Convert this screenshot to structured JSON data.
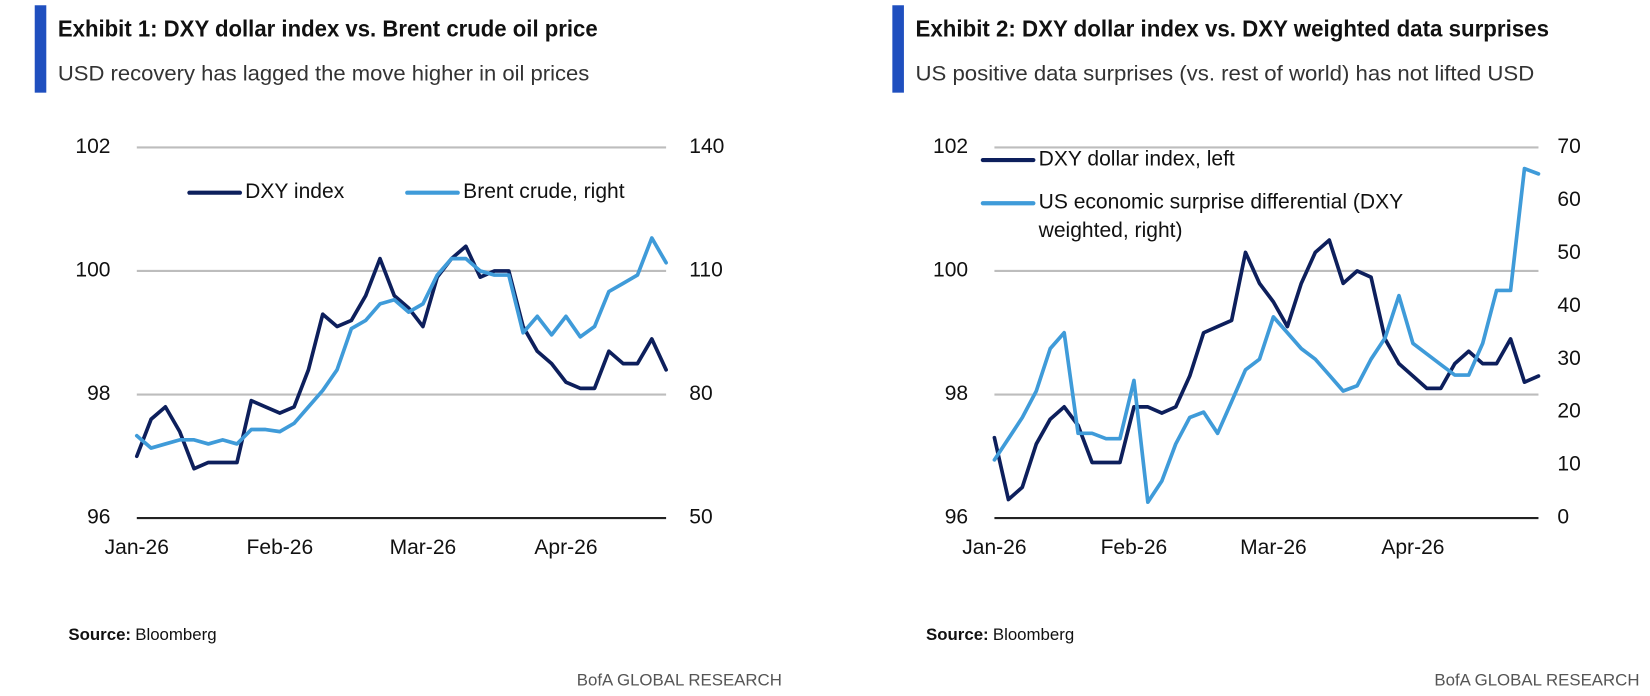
{
  "chart_data": [
    {
      "type": "line",
      "title": "Exhibit 1: DXY dollar index vs. Brent crude oil price",
      "subtitle": "USD recovery has lagged the move higher in oil prices",
      "categories": [
        "Jan-26",
        null,
        null,
        null,
        null,
        null,
        null,
        null,
        null,
        null,
        "Feb-26",
        null,
        null,
        null,
        null,
        null,
        null,
        null,
        null,
        null,
        "Mar-26",
        null,
        null,
        null,
        null,
        null,
        null,
        null,
        null,
        null,
        "Apr-26",
        null,
        null,
        null,
        null,
        null,
        null,
        null
      ],
      "series": [
        {
          "name": "DXY index",
          "color": "#0d1f5c",
          "values": [
            97.0,
            97.6,
            97.8,
            97.4,
            96.8,
            96.9,
            96.9,
            96.9,
            97.9,
            97.8,
            97.7,
            97.8,
            98.4,
            99.3,
            99.1,
            99.2,
            99.6,
            100.2,
            99.6,
            99.4,
            99.1,
            99.9,
            100.2,
            100.4,
            99.9,
            100.0,
            100.0,
            99.1,
            98.7,
            98.5,
            98.2,
            98.1,
            98.1,
            98.7,
            98.5,
            98.5,
            98.9,
            98.4
          ]
        },
        {
          "name": "Brent crude, right",
          "color": "#3f9bd9",
          "axis": "y2",
          "values": [
            70,
            67,
            68,
            69,
            69,
            68,
            69,
            68,
            71.5,
            71.5,
            71,
            73,
            77,
            81,
            86,
            96,
            98,
            102,
            103,
            100,
            102,
            109,
            113,
            113,
            110,
            109,
            109,
            95,
            99,
            94.5,
            99,
            94,
            96.5,
            105,
            107,
            109,
            118,
            112
          ]
        }
      ],
      "ylim": [
        96,
        102
      ],
      "yticks": [
        96,
        98,
        100,
        102
      ],
      "y2lim": [
        50,
        140
      ],
      "y2ticks": [
        50,
        80,
        110,
        140
      ],
      "grid": true,
      "legend": "upper center",
      "source_label": "Source:",
      "source": "Bloomberg",
      "footer": "BofA GLOBAL RESEARCH"
    },
    {
      "type": "line",
      "title": "Exhibit 2: DXY dollar index vs. DXY weighted data surprises",
      "subtitle": "US positive data surprises (vs. rest of world) has not lifted USD",
      "categories": [
        "Jan-26",
        null,
        null,
        null,
        null,
        null,
        null,
        null,
        null,
        null,
        "Feb-26",
        null,
        null,
        null,
        null,
        null,
        null,
        null,
        null,
        null,
        "Mar-26",
        null,
        null,
        null,
        null,
        null,
        null,
        null,
        null,
        null,
        "Apr-26",
        null,
        null,
        null,
        null,
        null,
        null,
        null,
        null,
        null
      ],
      "series": [
        {
          "name": "DXY dollar index, left",
          "color": "#0d1f5c",
          "values": [
            97.3,
            96.3,
            96.5,
            97.2,
            97.6,
            97.8,
            97.5,
            96.9,
            96.9,
            96.9,
            97.8,
            97.8,
            97.7,
            97.8,
            98.3,
            99.0,
            99.1,
            99.2,
            100.3,
            99.8,
            99.5,
            99.1,
            99.8,
            100.3,
            100.5,
            99.8,
            100.0,
            99.9,
            98.9,
            98.5,
            98.3,
            98.1,
            98.1,
            98.5,
            98.7,
            98.5,
            98.5,
            98.9,
            98.2,
            98.3
          ]
        },
        {
          "name": "US economic surprise differential (DXY weighted, right)",
          "color": "#3f9bd9",
          "axis": "y2",
          "values": [
            11,
            15,
            19,
            24,
            32,
            35,
            16,
            16,
            15,
            15,
            26,
            3,
            7,
            14,
            19,
            20,
            16,
            22,
            28,
            30,
            38,
            35,
            32,
            30,
            27,
            24,
            25,
            30,
            34,
            42,
            33,
            31,
            29,
            27,
            27,
            33,
            43,
            43,
            66,
            65
          ]
        }
      ],
      "ylim": [
        96,
        102
      ],
      "yticks": [
        96,
        98,
        100,
        102
      ],
      "y2lim": [
        0,
        70
      ],
      "y2ticks": [
        0,
        10,
        20,
        30,
        40,
        50,
        60,
        70
      ],
      "grid": true,
      "legend": "upper left",
      "source_label": "Source:",
      "source": "Bloomberg",
      "footer": "BofA GLOBAL RESEARCH"
    }
  ]
}
